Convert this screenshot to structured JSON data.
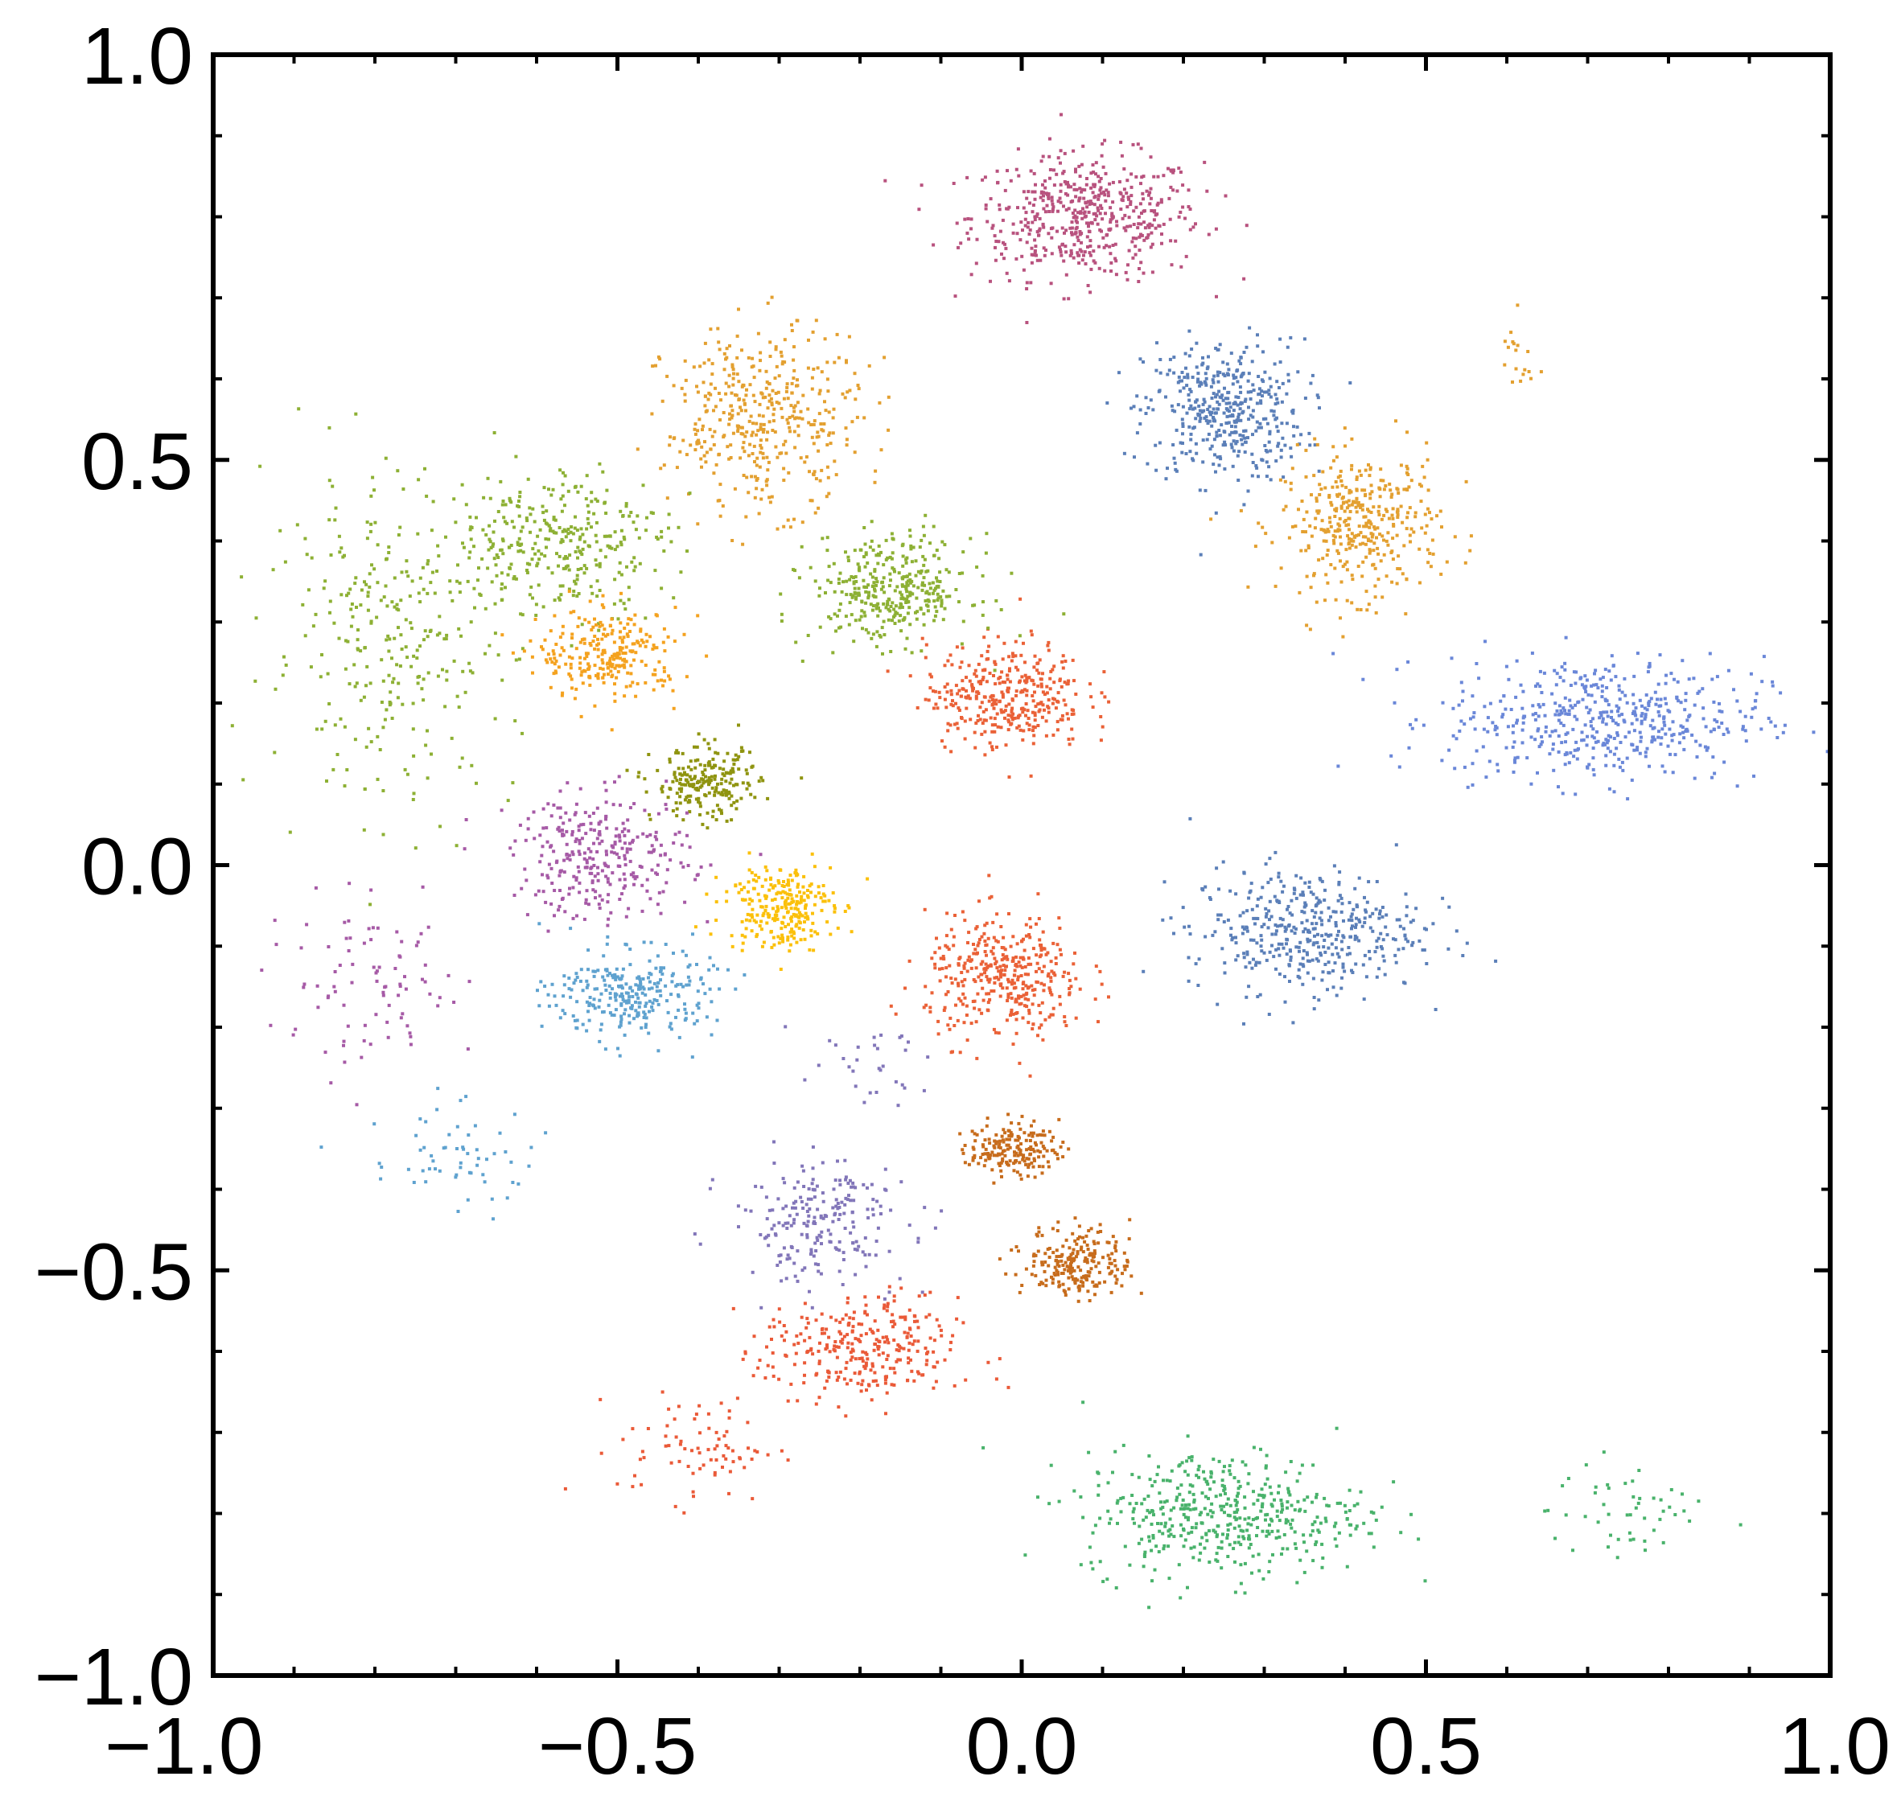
{
  "chart_data": {
    "type": "scatter",
    "title": "",
    "xlabel": "",
    "ylabel": "",
    "xlim": [
      -1.0,
      1.0
    ],
    "ylim": [
      -1.0,
      1.0
    ],
    "grid": false,
    "legend": "none",
    "x_ticks": [
      -1.0,
      -0.5,
      0.0,
      0.5,
      1.0
    ],
    "y_ticks": [
      -1.0,
      -0.5,
      0.0,
      0.5,
      1.0
    ],
    "x_tick_labels": [
      "−1.0",
      "−0.5",
      "0.0",
      "0.5",
      "1.0"
    ],
    "y_tick_labels": [
      "−1.0",
      "−0.5",
      "0.0",
      "0.5",
      "1.0"
    ],
    "clusters": [
      {
        "color": "#b8527e",
        "center": [
          0.08,
          0.8
        ],
        "spread": [
          0.13,
          0.07
        ],
        "n": 520
      },
      {
        "color": "#5b7fb8",
        "center": [
          0.25,
          0.56
        ],
        "spread": [
          0.09,
          0.08
        ],
        "n": 420
      },
      {
        "color": "#e3a030",
        "center": [
          0.42,
          0.42
        ],
        "spread": [
          0.09,
          0.08
        ],
        "n": 380
      },
      {
        "color": "#e3a030",
        "center": [
          0.61,
          0.62
        ],
        "spread": [
          0.02,
          0.05
        ],
        "n": 18
      },
      {
        "color": "#6a87d8",
        "center": [
          0.72,
          0.18
        ],
        "spread": [
          0.18,
          0.07
        ],
        "n": 500
      },
      {
        "color": "#5b7fb8",
        "center": [
          0.35,
          -0.08
        ],
        "spread": [
          0.13,
          0.07
        ],
        "n": 420
      },
      {
        "color": "#ea6137",
        "center": [
          -0.02,
          0.21
        ],
        "spread": [
          0.09,
          0.06
        ],
        "n": 360
      },
      {
        "color": "#ea6137",
        "center": [
          -0.02,
          -0.14
        ],
        "spread": [
          0.09,
          0.07
        ],
        "n": 380
      },
      {
        "color": "#8db034",
        "center": [
          -0.16,
          0.34
        ],
        "spread": [
          0.09,
          0.06
        ],
        "n": 360
      },
      {
        "color": "#e3a030",
        "center": [
          -0.32,
          0.55
        ],
        "spread": [
          0.11,
          0.1
        ],
        "n": 420
      },
      {
        "color": "#8db034",
        "center": [
          -0.57,
          0.4
        ],
        "spread": [
          0.12,
          0.08
        ],
        "n": 320
      },
      {
        "color": "#8db034",
        "center": [
          -0.78,
          0.28
        ],
        "spread": [
          0.14,
          0.18
        ],
        "n": 300
      },
      {
        "color": "#f4a21f",
        "center": [
          -0.51,
          0.26
        ],
        "spread": [
          0.08,
          0.05
        ],
        "n": 260
      },
      {
        "color": "#8f9410",
        "center": [
          -0.39,
          0.1
        ],
        "spread": [
          0.06,
          0.04
        ],
        "n": 220
      },
      {
        "color": "#a65aa6",
        "center": [
          -0.52,
          0.01
        ],
        "spread": [
          0.1,
          0.07
        ],
        "n": 300
      },
      {
        "color": "#a65aa6",
        "center": [
          -0.8,
          -0.15
        ],
        "spread": [
          0.12,
          0.09
        ],
        "n": 90
      },
      {
        "color": "#fbc00b",
        "center": [
          -0.3,
          -0.05
        ],
        "spread": [
          0.06,
          0.05
        ],
        "n": 260
      },
      {
        "color": "#5fa2cf",
        "center": [
          -0.48,
          -0.16
        ],
        "spread": [
          0.09,
          0.05
        ],
        "n": 280
      },
      {
        "color": "#5fa2cf",
        "center": [
          -0.7,
          -0.36
        ],
        "spread": [
          0.1,
          0.06
        ],
        "n": 60
      },
      {
        "color": "#8276b9",
        "center": [
          -0.25,
          -0.44
        ],
        "spread": [
          0.1,
          0.07
        ],
        "n": 220
      },
      {
        "color": "#8276b9",
        "center": [
          -0.2,
          -0.25
        ],
        "spread": [
          0.08,
          0.04
        ],
        "n": 30
      },
      {
        "color": "#c76c1c",
        "center": [
          -0.01,
          -0.35
        ],
        "spread": [
          0.05,
          0.03
        ],
        "n": 180
      },
      {
        "color": "#c76c1c",
        "center": [
          0.07,
          -0.49
        ],
        "spread": [
          0.06,
          0.04
        ],
        "n": 220
      },
      {
        "color": "#ea5a38",
        "center": [
          -0.2,
          -0.6
        ],
        "spread": [
          0.11,
          0.06
        ],
        "n": 300
      },
      {
        "color": "#ea5a38",
        "center": [
          -0.4,
          -0.72
        ],
        "spread": [
          0.09,
          0.06
        ],
        "n": 80
      },
      {
        "color": "#49b26b",
        "center": [
          0.25,
          -0.8
        ],
        "spread": [
          0.16,
          0.07
        ],
        "n": 460
      },
      {
        "color": "#49b26b",
        "center": [
          0.75,
          -0.8
        ],
        "spread": [
          0.09,
          0.06
        ],
        "n": 50
      }
    ]
  }
}
